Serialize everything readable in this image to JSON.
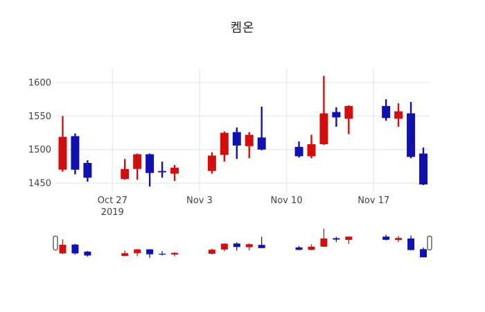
{
  "chart_data": {
    "type": "candlestick",
    "title": "켐온",
    "up_color": "#d20f0f",
    "down_color": "#1111b0",
    "grid_color": "#e8e8eb",
    "text_color": "#3f3f46",
    "y_ticks": [
      1450,
      1500,
      1550,
      1600
    ],
    "y_range": [
      1436.6,
      1620.7
    ],
    "x_range": [
      "2019-10-22T10:00:00Z",
      "2019-11-21T12:00:00Z"
    ],
    "x_ticks": [
      {
        "date": "2019-10-27",
        "label": "Oct 27",
        "sublabel": "2019"
      },
      {
        "date": "2019-11-03",
        "label": "Nov 3"
      },
      {
        "date": "2019-11-10",
        "label": "Nov 10"
      },
      {
        "date": "2019-11-17",
        "label": "Nov 17"
      }
    ],
    "rangeslider": {
      "visible": true,
      "handle_count": 2
    },
    "candles": [
      {
        "date": "2019-10-23",
        "open": 1470,
        "high": 1550,
        "low": 1467,
        "close": 1519
      },
      {
        "date": "2019-10-24",
        "open": 1520,
        "high": 1524,
        "low": 1463,
        "close": 1470
      },
      {
        "date": "2019-10-25",
        "open": 1480,
        "high": 1484,
        "low": 1452,
        "close": 1458
      },
      {
        "date": "2019-10-28",
        "open": 1456,
        "high": 1486,
        "low": 1455,
        "close": 1471
      },
      {
        "date": "2019-10-29",
        "open": 1471,
        "high": 1494,
        "low": 1455,
        "close": 1493
      },
      {
        "date": "2019-10-30",
        "open": 1493,
        "high": 1494,
        "low": 1445,
        "close": 1465
      },
      {
        "date": "2019-10-31",
        "open": 1468,
        "high": 1482,
        "low": 1458,
        "close": 1466
      },
      {
        "date": "2019-11-01",
        "open": 1464,
        "high": 1477,
        "low": 1453,
        "close": 1473
      },
      {
        "date": "2019-11-04",
        "open": 1468,
        "high": 1496,
        "low": 1464,
        "close": 1491
      },
      {
        "date": "2019-11-05",
        "open": 1492,
        "high": 1527,
        "low": 1482,
        "close": 1525
      },
      {
        "date": "2019-11-06",
        "open": 1526,
        "high": 1533,
        "low": 1486,
        "close": 1506
      },
      {
        "date": "2019-11-07",
        "open": 1505,
        "high": 1526,
        "low": 1487,
        "close": 1522
      },
      {
        "date": "2019-11-08",
        "open": 1518,
        "high": 1564,
        "low": 1499,
        "close": 1500
      },
      {
        "date": "2019-11-11",
        "open": 1504,
        "high": 1512,
        "low": 1488,
        "close": 1490
      },
      {
        "date": "2019-11-12",
        "open": 1490,
        "high": 1522,
        "low": 1487,
        "close": 1508
      },
      {
        "date": "2019-11-13",
        "open": 1508,
        "high": 1610,
        "low": 1507,
        "close": 1554
      },
      {
        "date": "2019-11-14",
        "open": 1556,
        "high": 1563,
        "low": 1534,
        "close": 1548
      },
      {
        "date": "2019-11-15",
        "open": 1546,
        "high": 1566,
        "low": 1523,
        "close": 1565
      },
      {
        "date": "2019-11-18",
        "open": 1565,
        "high": 1575,
        "low": 1543,
        "close": 1547
      },
      {
        "date": "2019-11-19",
        "open": 1546,
        "high": 1569,
        "low": 1534,
        "close": 1557
      },
      {
        "date": "2019-11-20",
        "open": 1554,
        "high": 1571,
        "low": 1487,
        "close": 1489
      },
      {
        "date": "2019-11-21",
        "open": 1494,
        "high": 1503,
        "low": 1447,
        "close": 1448
      }
    ]
  }
}
